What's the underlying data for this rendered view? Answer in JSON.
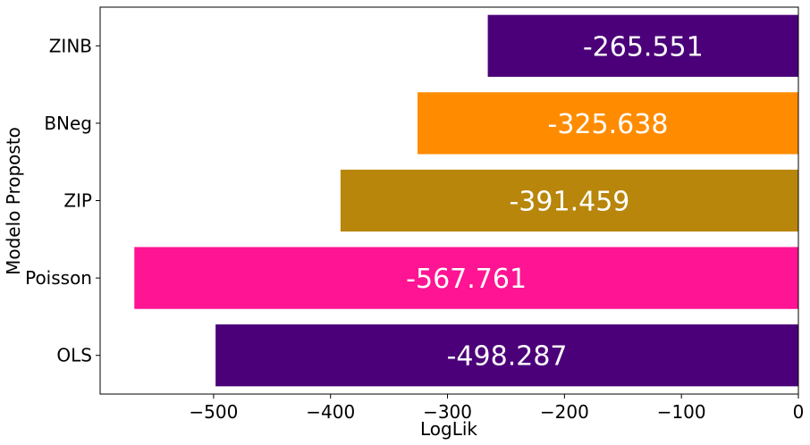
{
  "chart_data": {
    "type": "bar",
    "orientation": "horizontal",
    "title": "",
    "xlabel": "LogLik",
    "ylabel": "Modelo Proposto",
    "categories": [
      "OLS",
      "Poisson",
      "ZIP",
      "BNeg",
      "ZINB"
    ],
    "values": [
      -498.287,
      -567.761,
      -391.459,
      -325.638,
      -265.551
    ],
    "data_labels": [
      "-498.287",
      "-567.761",
      "-391.459",
      "-325.638",
      "-265.551"
    ],
    "colors": [
      "#4b0079",
      "#ff1493",
      "#b8860b",
      "#ff8c00",
      "#4b0079"
    ],
    "xlim": [
      -597,
      0
    ],
    "xticks": [
      -500,
      -400,
      -300,
      -200,
      -100,
      0
    ],
    "xtick_labels": [
      "−500",
      "−400",
      "−300",
      "−200",
      "−100",
      "0"
    ],
    "grid": false,
    "legend": "none"
  }
}
